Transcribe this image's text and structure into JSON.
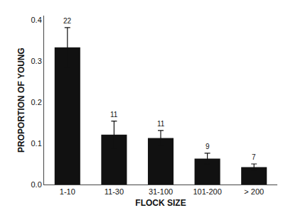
{
  "chart_data": {
    "type": "bar",
    "categories": [
      "1-10",
      "11-30",
      "31-100",
      "101-200",
      "> 200"
    ],
    "values": [
      0.333,
      0.121,
      0.113,
      0.063,
      0.042
    ],
    "errors": [
      0.048,
      0.033,
      0.018,
      0.013,
      0.008
    ],
    "annotations": [
      "22",
      "11",
      "11",
      "9",
      "7"
    ],
    "color": "#111111",
    "xlabel": "FLOCK SIZE",
    "ylabel": "PROPORTION OF YOUNG",
    "ylim": [
      0,
      0.41
    ],
    "yticks": [
      {
        "value": 0,
        "label": "0.0"
      },
      0.1,
      0.2,
      0.3,
      0.4
    ],
    "grid": false
  }
}
